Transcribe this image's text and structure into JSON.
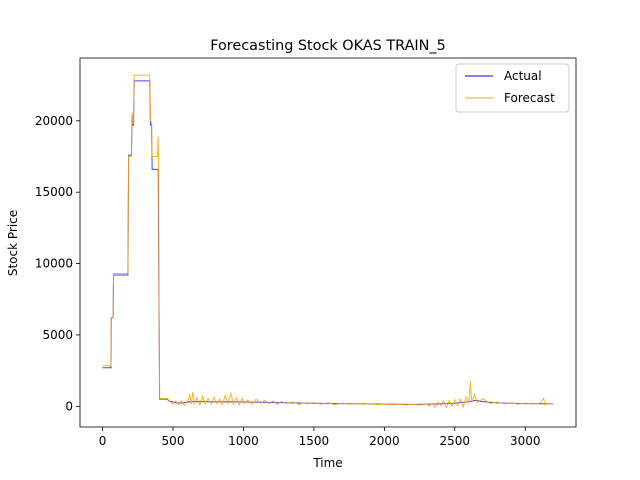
{
  "chart_data": {
    "type": "line",
    "title": "Forecasting Stock OKAS TRAIN_5",
    "xlabel": "Time",
    "ylabel": "Stock Price",
    "xlim": [
      -160,
      3360
    ],
    "ylim": [
      -1450,
      24400
    ],
    "xticks": [
      0,
      500,
      1000,
      1500,
      2000,
      2500,
      3000
    ],
    "yticks": [
      0,
      5000,
      10000,
      15000,
      20000
    ],
    "grid": false,
    "legend_position": "top-right",
    "series": [
      {
        "name": "Actual",
        "color": "#0000ff",
        "points": [
          [
            0,
            2700
          ],
          [
            60,
            2700
          ],
          [
            62,
            6200
          ],
          [
            75,
            6200
          ],
          [
            78,
            9200
          ],
          [
            180,
            9200
          ],
          [
            185,
            17600
          ],
          [
            205,
            17600
          ],
          [
            210,
            20400
          ],
          [
            214,
            19700
          ],
          [
            220,
            19700
          ],
          [
            225,
            22800
          ],
          [
            335,
            22800
          ],
          [
            340,
            19700
          ],
          [
            348,
            19700
          ],
          [
            352,
            16600
          ],
          [
            395,
            16600
          ],
          [
            400,
            8000
          ],
          [
            405,
            500
          ],
          [
            460,
            500
          ],
          [
            470,
            380
          ],
          [
            520,
            260
          ],
          [
            560,
            220
          ],
          [
            600,
            300
          ],
          [
            650,
            340
          ],
          [
            700,
            330
          ],
          [
            800,
            310
          ],
          [
            900,
            320
          ],
          [
            1000,
            300
          ],
          [
            1100,
            290
          ],
          [
            1200,
            270
          ],
          [
            1300,
            250
          ],
          [
            1400,
            230
          ],
          [
            1500,
            215
          ],
          [
            1600,
            200
          ],
          [
            1700,
            190
          ],
          [
            1800,
            180
          ],
          [
            1900,
            170
          ],
          [
            2000,
            150
          ],
          [
            2100,
            140
          ],
          [
            2200,
            130
          ],
          [
            2300,
            150
          ],
          [
            2400,
            170
          ],
          [
            2500,
            210
          ],
          [
            2600,
            330
          ],
          [
            2650,
            420
          ],
          [
            2700,
            330
          ],
          [
            2800,
            240
          ],
          [
            2900,
            210
          ],
          [
            3000,
            190
          ],
          [
            3100,
            180
          ],
          [
            3200,
            175
          ]
        ]
      },
      {
        "name": "Forecast",
        "color": "#ffa500",
        "points": [
          [
            0,
            2850
          ],
          [
            60,
            2850
          ],
          [
            62,
            6200
          ],
          [
            75,
            6200
          ],
          [
            78,
            9300
          ],
          [
            180,
            9300
          ],
          [
            185,
            17500
          ],
          [
            205,
            17500
          ],
          [
            210,
            20600
          ],
          [
            214,
            19800
          ],
          [
            220,
            19800
          ],
          [
            225,
            23200
          ],
          [
            335,
            23200
          ],
          [
            340,
            20000
          ],
          [
            348,
            19900
          ],
          [
            352,
            17500
          ],
          [
            390,
            17500
          ],
          [
            395,
            18900
          ],
          [
            398,
            16600
          ],
          [
            400,
            9000
          ],
          [
            405,
            550
          ],
          [
            460,
            550
          ],
          [
            480,
            300
          ],
          [
            500,
            150
          ],
          [
            520,
            380
          ],
          [
            540,
            100
          ],
          [
            560,
            420
          ],
          [
            580,
            60
          ],
          [
            600,
            300
          ],
          [
            620,
            800
          ],
          [
            630,
            150
          ],
          [
            640,
            1000
          ],
          [
            650,
            200
          ],
          [
            670,
            600
          ],
          [
            690,
            100
          ],
          [
            710,
            700
          ],
          [
            730,
            200
          ],
          [
            750,
            550
          ],
          [
            770,
            150
          ],
          [
            790,
            650
          ],
          [
            810,
            200
          ],
          [
            830,
            500
          ],
          [
            850,
            120
          ],
          [
            870,
            750
          ],
          [
            890,
            200
          ],
          [
            910,
            900
          ],
          [
            930,
            150
          ],
          [
            950,
            600
          ],
          [
            970,
            100
          ],
          [
            990,
            550
          ],
          [
            1010,
            200
          ],
          [
            1030,
            450
          ],
          [
            1060,
            150
          ],
          [
            1090,
            500
          ],
          [
            1120,
            200
          ],
          [
            1150,
            420
          ],
          [
            1180,
            180
          ],
          [
            1210,
            380
          ],
          [
            1240,
            120
          ],
          [
            1270,
            350
          ],
          [
            1300,
            200
          ],
          [
            1350,
            300
          ],
          [
            1400,
            120
          ],
          [
            1420,
            250
          ],
          [
            1450,
            180
          ],
          [
            1500,
            260
          ],
          [
            1550,
            150
          ],
          [
            1600,
            240
          ],
          [
            1650,
            120
          ],
          [
            1700,
            220
          ],
          [
            1750,
            150
          ],
          [
            1800,
            200
          ],
          [
            1850,
            140
          ],
          [
            1900,
            180
          ],
          [
            1950,
            120
          ],
          [
            2000,
            160
          ],
          [
            2050,
            110
          ],
          [
            2100,
            150
          ],
          [
            2150,
            100
          ],
          [
            2200,
            140
          ],
          [
            2250,
            90
          ],
          [
            2300,
            150
          ],
          [
            2320,
            0
          ],
          [
            2340,
            220
          ],
          [
            2360,
            -100
          ],
          [
            2380,
            300
          ],
          [
            2400,
            50
          ],
          [
            2420,
            350
          ],
          [
            2440,
            -80
          ],
          [
            2460,
            400
          ],
          [
            2480,
            0
          ],
          [
            2500,
            450
          ],
          [
            2520,
            50
          ],
          [
            2540,
            500
          ],
          [
            2560,
            -50
          ],
          [
            2580,
            650
          ],
          [
            2600,
            250
          ],
          [
            2610,
            1750
          ],
          [
            2620,
            300
          ],
          [
            2640,
            800
          ],
          [
            2660,
            250
          ],
          [
            2700,
            550
          ],
          [
            2750,
            200
          ],
          [
            2800,
            300
          ],
          [
            2850,
            180
          ],
          [
            2900,
            240
          ],
          [
            2950,
            150
          ],
          [
            3000,
            220
          ],
          [
            3050,
            160
          ],
          [
            3100,
            200
          ],
          [
            3130,
            550
          ],
          [
            3140,
            100
          ],
          [
            3160,
            200
          ],
          [
            3200,
            175
          ]
        ]
      }
    ]
  }
}
